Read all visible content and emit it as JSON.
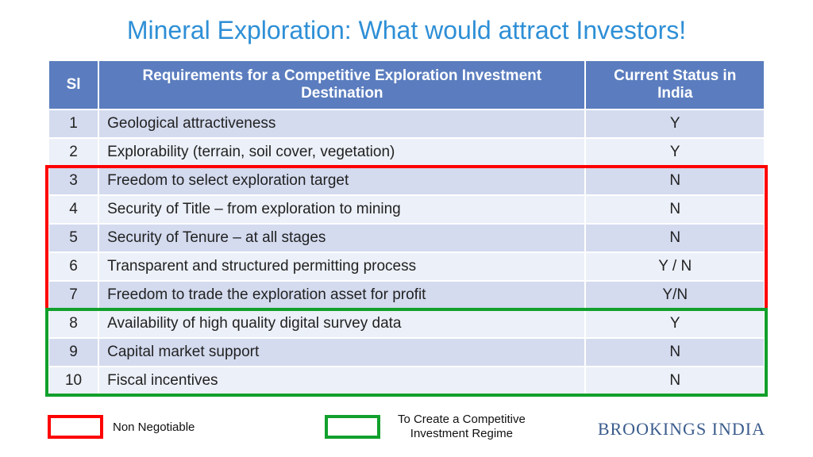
{
  "title": "Mineral Exploration: What would attract Investors!",
  "title_color": "#2e8fd6",
  "table": {
    "header_bg": "#5b7dbf",
    "header_fg": "#ffffff",
    "row_alt_bg_dark": "#d4dbef",
    "row_alt_bg_light": "#ecf0f8",
    "text_color": "#222222",
    "columns": {
      "sl": "Sl",
      "req": "Requirements for a Competitive Exploration Investment Destination",
      "status": "Current Status in India"
    },
    "rows": [
      {
        "sl": "1",
        "req": "Geological attractiveness",
        "status": "Y"
      },
      {
        "sl": "2",
        "req": "Explorability (terrain, soil cover, vegetation)",
        "status": "Y"
      },
      {
        "sl": "3",
        "req": "Freedom to select exploration target",
        "status": "N"
      },
      {
        "sl": "4",
        "req": "Security of Title – from exploration to mining",
        "status": "N"
      },
      {
        "sl": "5",
        "req": "Security of Tenure – at all stages",
        "status": "N"
      },
      {
        "sl": "6",
        "req": "Transparent and structured permitting process",
        "status": "Y / N"
      },
      {
        "sl": "7",
        "req": "Freedom to trade the exploration asset for profit",
        "status": "Y/N"
      },
      {
        "sl": "8",
        "req": "Availability of high quality digital survey data",
        "status": "Y"
      },
      {
        "sl": "9",
        "req": "Capital market support",
        "status": "N"
      },
      {
        "sl": "10",
        "req": "Fiscal incentives",
        "status": "N"
      }
    ]
  },
  "highlights": {
    "red": {
      "color": "#ff0000",
      "border_width": 4,
      "row_start": 3,
      "row_end": 7
    },
    "green": {
      "color": "#12a02c",
      "border_width": 4,
      "row_start": 8,
      "row_end": 10
    }
  },
  "legend": {
    "red_label": "Non Negotiable",
    "green_label": "To Create a Competitive Investment Regime"
  },
  "brand": {
    "text": "BROOKINGS INDIA",
    "color": "#3a5b8c"
  }
}
